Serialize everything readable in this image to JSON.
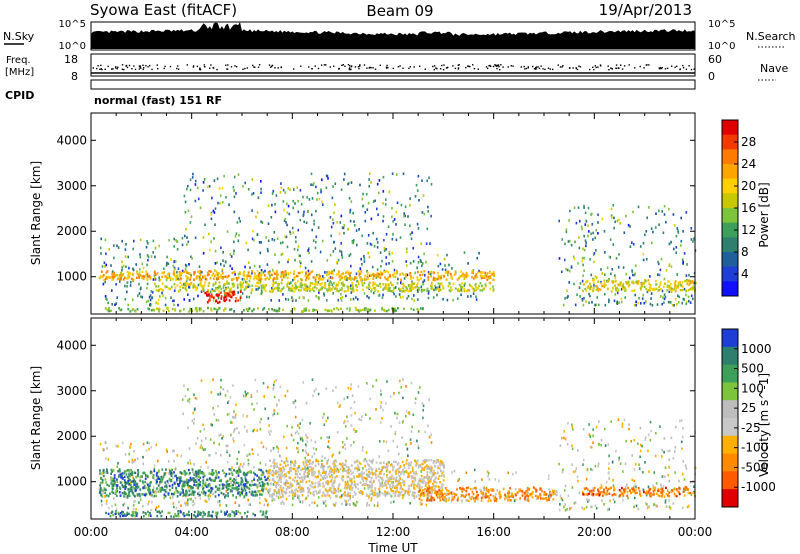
{
  "header": {
    "station": "Syowa East (fitACF)",
    "beam": "Beam 09",
    "date": "19/Apr/2013"
  },
  "top_panels": {
    "nsky_label": "N.Sky",
    "nsky_ticks": [
      "10^5",
      "10^0"
    ],
    "nsearch_label": "N.Search",
    "nsearch_ticks": [
      "10^5",
      "10^0"
    ],
    "freq_label": "Freq.",
    "freq_unit": "[MHz]",
    "freq_ticks": [
      "18",
      "8"
    ],
    "nave_label": "Nave",
    "nave_ticks": [
      "60",
      "0"
    ],
    "cpid_label": "CPID",
    "cpid_value": "normal (fast) 151 RF"
  },
  "chart_data": [
    {
      "type": "heatmap",
      "name": "power-panel",
      "ylabel": "Slant Range [km]",
      "ylim": [
        180,
        4600
      ],
      "yticks": [
        1000,
        2000,
        3000,
        4000
      ],
      "xlim": [
        0,
        24
      ],
      "colorbar_label": "Power [dB]",
      "colorbar_ticks": [
        "28",
        "24",
        "20",
        "16",
        "12",
        "8",
        "4"
      ],
      "colorbar_colors": [
        "#e10000",
        "#f43a00",
        "#ff7a00",
        "#ffa500",
        "#ffd000",
        "#c8c800",
        "#7cc43c",
        "#3ca05a",
        "#2f7f6e",
        "#1f5f9c",
        "#1e3ed6",
        "#1010ff"
      ],
      "scatter_regions": [
        {
          "x": [
            0.3,
            3.6
          ],
          "y": [
            400,
            1900
          ],
          "density": 0.55
        },
        {
          "x": [
            3.6,
            13.5
          ],
          "y": [
            500,
            3300
          ],
          "density": 0.45
        },
        {
          "x": [
            13.5,
            15.5
          ],
          "y": [
            500,
            1600
          ],
          "density": 0.35
        },
        {
          "x": [
            18.5,
            24
          ],
          "y": [
            400,
            2600
          ],
          "density": 0.45
        }
      ],
      "bands": [
        {
          "x": [
            0.3,
            16
          ],
          "y": [
            950,
            1150
          ],
          "level": 0.7
        },
        {
          "x": [
            2.5,
            16
          ],
          "y": [
            700,
            900
          ],
          "level": 0.55
        },
        {
          "x": [
            4.5,
            6
          ],
          "y": [
            450,
            700
          ],
          "level": 0.95
        },
        {
          "x": [
            0.5,
            13.2
          ],
          "y": [
            260,
            340
          ],
          "level": 0.45
        },
        {
          "x": [
            19.5,
            24
          ],
          "y": [
            700,
            950
          ],
          "level": 0.6
        }
      ]
    },
    {
      "type": "heatmap",
      "name": "velocity-panel",
      "ylabel": "Slant Range [km]",
      "ylim": [
        180,
        4600
      ],
      "yticks": [
        1000,
        2000,
        3000,
        4000
      ],
      "xlim": [
        0,
        24
      ],
      "xticks": [
        "00:00",
        "04:00",
        "08:00",
        "12:00",
        "16:00",
        "20:00",
        "00:00"
      ],
      "xlabel": "Time UT",
      "colorbar_label": "Velocity [m s^-1]",
      "colorbar_ticks": [
        "1000",
        "500",
        "100",
        "25",
        "-25",
        "-100",
        "-500",
        "-1000"
      ],
      "colorbar_colors": [
        "#1e3ed6",
        "#2f7f6e",
        "#3ca05a",
        "#7cc43c",
        "#bdbdbd",
        "#c8c8c8",
        "#ffb000",
        "#ff8a00",
        "#ff5a00",
        "#e10000"
      ],
      "scatter_regions": [
        {
          "x": [
            0.3,
            3.6
          ],
          "y": [
            400,
            1900
          ],
          "density": 0.55
        },
        {
          "x": [
            3.6,
            13.5
          ],
          "y": [
            500,
            3300
          ],
          "density": 0.45
        },
        {
          "x": [
            13.5,
            18.5
          ],
          "y": [
            600,
            1300
          ],
          "density": 0.35
        },
        {
          "x": [
            18.5,
            24
          ],
          "y": [
            400,
            2400
          ],
          "density": 0.4
        }
      ],
      "bands": [
        {
          "x": [
            0.3,
            7
          ],
          "y": [
            700,
            1300
          ],
          "level": 0.85
        },
        {
          "x": [
            7,
            14
          ],
          "y": [
            700,
            1500
          ],
          "level": 0.45
        },
        {
          "x": [
            13,
            18.5
          ],
          "y": [
            600,
            900
          ],
          "level": 0.25
        },
        {
          "x": [
            0.5,
            7
          ],
          "y": [
            250,
            380
          ],
          "level": 0.82
        },
        {
          "x": [
            19.5,
            24
          ],
          "y": [
            700,
            900
          ],
          "level": 0.2
        }
      ]
    }
  ]
}
